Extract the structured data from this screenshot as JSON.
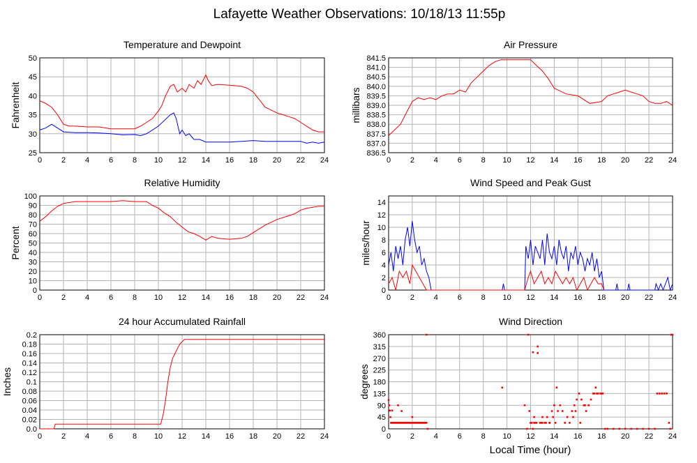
{
  "page": {
    "title": "Lafayette Weather Observations: 10/18/13 11:55p",
    "xlabel": "Local Time (hour)"
  },
  "colors": {
    "red": "#ff0000",
    "blue": "#0000ff",
    "grid": "#b4b4b4"
  },
  "chart_data": [
    {
      "id": "temperature",
      "type": "line",
      "title": "Temperature and Dewpoint",
      "xlabel": "",
      "ylabel": "Fahrenheit",
      "xlim": [
        0,
        24
      ],
      "ylim": [
        25,
        50
      ],
      "xticks": [
        0,
        2,
        4,
        6,
        8,
        10,
        12,
        14,
        16,
        18,
        20,
        22,
        24
      ],
      "yticks": [
        25,
        30,
        35,
        40,
        45,
        50
      ],
      "grid": true,
      "series": [
        {
          "color": "#ff0000",
          "x": [
            0,
            0.5,
            1,
            1.5,
            2,
            2.5,
            3,
            4,
            5,
            6,
            7,
            8,
            8.5,
            9,
            9.5,
            10,
            10.3,
            10.6,
            11,
            11.3,
            11.6,
            12,
            12.3,
            12.6,
            13,
            13.3,
            13.6,
            14,
            14.2,
            14.5,
            15,
            16,
            17,
            17.5,
            18,
            18.5,
            19,
            20,
            21,
            21.5,
            22,
            22.5,
            23,
            23.5,
            24
          ],
          "values": [
            38.7,
            38,
            37,
            35,
            32.5,
            32,
            32,
            31.8,
            31.8,
            31.3,
            31.3,
            31.3,
            32,
            33,
            34,
            36,
            37.5,
            40,
            42.5,
            43,
            41,
            42,
            41,
            43,
            42,
            44,
            43,
            45.5,
            44,
            42.7,
            43,
            42.8,
            42.5,
            42,
            41,
            39,
            37,
            35.5,
            34.5,
            34,
            33,
            32,
            31,
            30.5,
            30.5
          ]
        },
        {
          "color": "#0000ff",
          "x": [
            0,
            0.5,
            1,
            1.5,
            2,
            3,
            4,
            5,
            6,
            7,
            8,
            8.5,
            9,
            9.5,
            10,
            10.5,
            11,
            11.3,
            11.5,
            11.8,
            12,
            12.3,
            12.6,
            13,
            13.5,
            14,
            15,
            16,
            17,
            18,
            19,
            20,
            21,
            22,
            22.5,
            23,
            23.5,
            24
          ],
          "values": [
            31,
            31.5,
            32.5,
            31.5,
            30.5,
            30.3,
            30.3,
            30.2,
            30,
            29.7,
            29.8,
            29.5,
            30,
            31,
            32,
            33.5,
            35,
            35.5,
            34,
            30,
            31,
            29.5,
            30,
            28.5,
            28.5,
            27.8,
            27.8,
            27.8,
            28,
            28.2,
            28,
            28,
            28,
            28,
            27.5,
            27.8,
            27.5,
            27.8
          ]
        }
      ]
    },
    {
      "id": "pressure",
      "type": "line",
      "title": "Air Pressure",
      "xlabel": "",
      "ylabel": "millibars",
      "xlim": [
        0,
        24
      ],
      "ylim": [
        836.5,
        841.5
      ],
      "xticks": [
        0,
        2,
        4,
        6,
        8,
        10,
        12,
        14,
        16,
        18,
        20,
        22,
        24
      ],
      "yticks": [
        836.5,
        837.0,
        837.5,
        838.0,
        838.5,
        839.0,
        839.5,
        840.0,
        840.5,
        841.0,
        841.5
      ],
      "ytick_labels": [
        "836.5",
        "837.0",
        "837.5",
        "838.0",
        "838.5",
        "839.0",
        "839.5",
        "840.0",
        "840.5",
        "841.0",
        "841.5"
      ],
      "grid": true,
      "series": [
        {
          "color": "#ff0000",
          "x": [
            0,
            0.5,
            1,
            1.5,
            2,
            2.5,
            3,
            3.5,
            4,
            4.5,
            5,
            5.5,
            6,
            6.5,
            7,
            7.5,
            8,
            8.5,
            9,
            9.5,
            10,
            11,
            12,
            12.5,
            13,
            13.5,
            14,
            15,
            16,
            17,
            18,
            18.5,
            19,
            19.5,
            20,
            20.5,
            21,
            21.5,
            22,
            22.5,
            23,
            23.5,
            24
          ],
          "values": [
            837.4,
            837.7,
            838.0,
            838.6,
            839.2,
            839.4,
            839.3,
            839.4,
            839.3,
            839.5,
            839.6,
            839.6,
            839.8,
            839.7,
            840.2,
            840.5,
            840.8,
            841.1,
            841.3,
            841.4,
            841.4,
            841.4,
            841.4,
            841.1,
            840.8,
            840.4,
            839.9,
            839.6,
            839.5,
            839.1,
            839.2,
            839.5,
            839.6,
            839.7,
            839.8,
            839.7,
            839.6,
            839.5,
            839.2,
            839.1,
            839.1,
            839.2,
            839.0
          ]
        }
      ]
    },
    {
      "id": "humidity",
      "type": "line",
      "title": "Relative Humidity",
      "xlabel": "",
      "ylabel": "Percent",
      "xlim": [
        0,
        24
      ],
      "ylim": [
        0,
        100
      ],
      "xticks": [
        0,
        2,
        4,
        6,
        8,
        10,
        12,
        14,
        16,
        18,
        20,
        22,
        24
      ],
      "yticks": [
        0,
        10,
        20,
        30,
        40,
        50,
        60,
        70,
        80,
        90,
        100
      ],
      "grid": true,
      "series": [
        {
          "color": "#ff0000",
          "x": [
            0,
            0.5,
            1,
            1.5,
            2,
            2.5,
            3,
            4,
            5,
            6,
            7,
            8,
            9,
            9.5,
            10,
            10.5,
            11,
            11.5,
            12,
            12.5,
            13,
            13.5,
            14,
            14.5,
            15,
            16,
            17,
            17.5,
            18,
            18.5,
            19,
            19.5,
            20,
            21,
            21.5,
            22,
            22.5,
            23,
            23.5,
            24
          ],
          "values": [
            73,
            78,
            84,
            89,
            92,
            93,
            94,
            94,
            94,
            94,
            95,
            94,
            94,
            90,
            87,
            82,
            78,
            72,
            67,
            62,
            60,
            57,
            53,
            57,
            55,
            54,
            55,
            57,
            61,
            65,
            69,
            72,
            75,
            79,
            81,
            85,
            87,
            88,
            89,
            89
          ]
        }
      ]
    },
    {
      "id": "wind_speed",
      "type": "line",
      "title": "Wind Speed and Peak Gust",
      "xlabel": "",
      "ylabel": "miles/hour",
      "xlim": [
        0,
        24
      ],
      "ylim": [
        0,
        15
      ],
      "xticks": [
        0,
        2,
        4,
        6,
        8,
        10,
        12,
        14,
        16,
        18,
        20,
        22,
        24
      ],
      "yticks": [
        0,
        2,
        4,
        6,
        8,
        10,
        12,
        14
      ],
      "grid": true,
      "series": [
        {
          "color": "#0000ff",
          "x": [
            0,
            0.2,
            0.4,
            0.6,
            0.8,
            1.0,
            1.2,
            1.4,
            1.6,
            1.8,
            2.0,
            2.2,
            2.4,
            2.6,
            2.8,
            3.0,
            3.2,
            3.4,
            3.6,
            9.6,
            9.7,
            9.8,
            11.5,
            11.6,
            11.8,
            12.0,
            12.2,
            12.4,
            12.6,
            12.8,
            13.0,
            13.2,
            13.4,
            13.6,
            13.8,
            14.0,
            14.2,
            14.4,
            14.6,
            14.8,
            15.0,
            15.2,
            15.4,
            15.6,
            15.8,
            16.0,
            16.2,
            16.4,
            16.6,
            16.8,
            17.0,
            17.2,
            17.4,
            17.6,
            17.8,
            18.0,
            18.2,
            19.2,
            19.3,
            19.4,
            20.2,
            20.3,
            20.4,
            22.5,
            22.6,
            22.8,
            23.0,
            23.2,
            23.4,
            23.6,
            23.8,
            24.0
          ],
          "values": [
            4,
            6,
            3,
            7,
            5,
            7,
            4,
            8,
            10,
            7,
            11,
            8,
            6,
            7,
            4,
            5,
            3,
            2,
            0,
            0,
            1,
            0,
            0,
            7,
            5,
            8,
            4,
            7,
            6,
            5,
            8,
            4,
            9,
            6,
            5,
            7,
            4,
            8,
            6,
            5,
            7,
            3,
            6,
            5,
            7,
            4,
            6,
            5,
            3,
            5,
            4,
            6,
            3,
            5,
            2,
            3,
            0,
            0,
            1,
            0,
            0,
            1,
            0,
            0,
            1,
            0,
            1,
            0,
            1,
            2,
            0,
            1
          ]
        },
        {
          "color": "#ff0000",
          "x": [
            0,
            0.3,
            0.6,
            0.9,
            1.2,
            1.5,
            1.8,
            2.0,
            2.3,
            2.6,
            2.9,
            3.2,
            3.5,
            11.5,
            11.8,
            12.0,
            12.3,
            12.6,
            12.9,
            13.2,
            13.5,
            13.8,
            14.1,
            14.4,
            14.7,
            15.0,
            15.3,
            15.6,
            15.9,
            16.2,
            16.5,
            16.8,
            17.1,
            17.4,
            17.7,
            18.0,
            18.2
          ],
          "values": [
            1,
            2,
            0,
            3,
            2,
            3,
            1,
            4,
            3,
            2,
            1,
            0,
            0,
            0,
            2,
            3,
            1,
            2,
            3,
            1,
            2,
            1,
            3,
            2,
            1,
            2,
            1,
            2,
            0,
            1,
            2,
            0,
            1,
            2,
            1,
            1,
            0
          ]
        }
      ]
    },
    {
      "id": "rainfall",
      "type": "line",
      "title": "24 hour Accumulated Rainfall",
      "xlabel": "",
      "ylabel": "Inches",
      "xlim": [
        0,
        24
      ],
      "ylim": [
        0,
        0.2
      ],
      "xticks": [
        0,
        2,
        4,
        6,
        8,
        10,
        12,
        14,
        16,
        18,
        20,
        22,
        24
      ],
      "yticks": [
        0,
        0.02,
        0.04,
        0.06,
        0.08,
        0.1,
        0.12,
        0.14,
        0.16,
        0.18,
        0.2
      ],
      "ytick_labels": [
        "0.0",
        "0.02",
        "0.04",
        "0.06",
        "0.08",
        "0.1",
        "0.12",
        "0.14",
        "0.16",
        "0.18",
        "0.2"
      ],
      "grid": true,
      "series": [
        {
          "color": "#ff0000",
          "x": [
            0,
            1.2,
            1.3,
            10.1,
            10.2,
            10.4,
            10.6,
            10.8,
            11.0,
            11.2,
            11.4,
            11.6,
            11.8,
            12.0,
            12.2,
            24
          ],
          "values": [
            0,
            0,
            0.01,
            0.01,
            0.01,
            0.03,
            0.06,
            0.1,
            0.13,
            0.15,
            0.16,
            0.17,
            0.18,
            0.185,
            0.19,
            0.19
          ]
        }
      ]
    },
    {
      "id": "wind_direction",
      "type": "scatter",
      "title": "Wind Direction",
      "xlabel": "Local Time (hour)",
      "ylabel": "degrees",
      "xlim": [
        0,
        24
      ],
      "ylim": [
        0,
        360
      ],
      "xticks": [
        0,
        2,
        4,
        6,
        8,
        10,
        12,
        14,
        16,
        18,
        20,
        22,
        24
      ],
      "yticks": [
        0,
        45,
        90,
        135,
        180,
        225,
        270,
        315,
        360
      ],
      "grid": true,
      "series": [
        {
          "color": "#ff0000",
          "x": [
            0,
            0.05,
            0.1,
            0.15,
            0.2,
            0.3,
            0.4,
            0.5,
            0.6,
            0.7,
            0.8,
            0.9,
            1.0,
            1.1,
            1.2,
            1.3,
            1.4,
            1.5,
            1.6,
            1.7,
            1.8,
            1.9,
            2.0,
            2.1,
            2.2,
            2.3,
            2.4,
            2.5,
            2.6,
            2.7,
            2.8,
            2.9,
            3.0,
            3.1,
            3.2,
            3.3,
            0.3,
            0.8,
            1.1,
            2.0,
            3.2,
            9.6,
            11.5,
            11.7,
            11.8,
            11.9,
            12.0,
            12.1,
            12.2,
            12.3,
            12.4,
            12.5,
            12.6,
            12.8,
            13.0,
            13.2,
            13.4,
            13.6,
            13.8,
            14.0,
            14.2,
            12.3,
            12.6,
            12.9,
            12.2,
            13.0,
            13.3,
            13.6,
            13.9,
            14.1,
            14.3,
            14.5,
            14.7,
            14.9,
            15.1,
            15.3,
            15.5,
            15.7,
            15.9,
            16.1,
            16.3,
            16.5,
            16.7,
            16.9,
            17.1,
            17.3,
            17.5,
            17.7,
            17.9,
            18.1,
            18.3,
            15.6,
            15.8,
            16.2,
            16.6,
            17.4,
            17.6,
            18.0,
            18.5,
            19.0,
            19.5,
            20.0,
            20.5,
            21.0,
            21.5,
            22.0,
            22.5,
            22.7,
            22.9,
            23.1,
            23.3,
            23.5,
            23.7,
            23.8,
            23.9,
            24.0
          ],
          "values": [
            110,
            90,
            70,
            45,
            23,
            23,
            23,
            23,
            23,
            23,
            23,
            23,
            23,
            23,
            23,
            23,
            23,
            23,
            23,
            23,
            23,
            23,
            23,
            23,
            23,
            23,
            23,
            23,
            23,
            23,
            23,
            23,
            23,
            23,
            23,
            0,
            70,
            90,
            68,
            45,
            360,
            158,
            90,
            0,
            360,
            68,
            23,
            23,
            293,
            23,
            23,
            23,
            290,
            23,
            45,
            23,
            45,
            23,
            68,
            90,
            158,
            45,
            315,
            23,
            0,
            23,
            23,
            23,
            45,
            23,
            68,
            90,
            68,
            23,
            45,
            23,
            68,
            90,
            112,
            135,
            112,
            90,
            68,
            90,
            112,
            135,
            158,
            135,
            135,
            135,
            0,
            45,
            68,
            23,
            90,
            135,
            135,
            135,
            0,
            0,
            0,
            0,
            0,
            0,
            0,
            0,
            0,
            135,
            135,
            135,
            135,
            135,
            23,
            0,
            360,
            360
          ]
        }
      ]
    }
  ]
}
